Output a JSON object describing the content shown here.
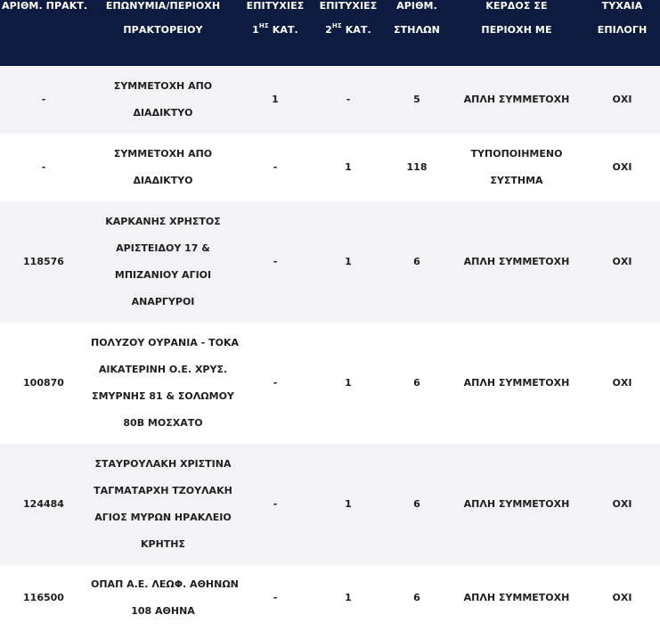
{
  "header": {
    "col1": [
      "ΑΡΙΘΜ. ΠΡΑΚΤ."
    ],
    "col2": [
      "ΕΠΩΝΥΜΙΑ/ΠΕΡΙΟΧΗ",
      "ΠΡΑΚΤΟΡΕΙΟΥ"
    ],
    "col3": {
      "line1": "ΕΠΙΤΥΧΙΕΣ",
      "num": "1",
      "sup": "ΗΣ",
      "rest": " ΚΑΤ."
    },
    "col4": {
      "line1": "ΕΠΙΤΥΧΙΕΣ",
      "num": "2",
      "sup": "ΗΣ",
      "rest": " ΚΑΤ."
    },
    "col5": [
      "ΑΡΙΘΜ.",
      "ΣΤΗΛΩΝ"
    ],
    "col6": [
      "ΚΕΡΔΟΣ ΣΕ",
      "ΠΕΡΙΟΧΗ ΜΕ"
    ],
    "col7": [
      "ΤΥΧΑΙΑ",
      "ΕΠΙΛΟΓΗ"
    ]
  },
  "rows": [
    {
      "code": "-",
      "name": [
        "ΣΥΜΜΕΤΟΧΗ ΑΠΟ",
        "ΔΙΑΔΙΚΤΥΟ"
      ],
      "first": "1",
      "second": "-",
      "columns": "5",
      "gain": [
        "ΑΠΛΗ ΣΥΜΜΕΤΟΧΗ"
      ],
      "random": "ΟΧΙ"
    },
    {
      "code": "-",
      "name": [
        "ΣΥΜΜΕΤΟΧΗ ΑΠΟ",
        "ΔΙΑΔΙΚΤΥΟ"
      ],
      "first": "-",
      "second": "1",
      "columns": "118",
      "gain": [
        "ΤΥΠΟΠΟΙΗΜΕΝΟ",
        "ΣΥΣΤΗΜΑ"
      ],
      "random": "ΟΧΙ"
    },
    {
      "code": "118576",
      "name": [
        "ΚΑΡΚΑΝΗΣ ΧΡΗΣΤΟΣ",
        "ΑΡΙΣΤΕΙΔΟΥ 17 &",
        "ΜΠΙΖΑΝΙΟΥ ΑΓΙΟΙ",
        "ΑΝΑΡΓΥΡΟΙ"
      ],
      "first": "-",
      "second": "1",
      "columns": "6",
      "gain": [
        "ΑΠΛΗ ΣΥΜΜΕΤΟΧΗ"
      ],
      "random": "ΟΧΙ"
    },
    {
      "code": "100870",
      "name": [
        "ΠΟΛΥΖΟΥ ΟΥΡΑΝΙΑ - ΤΟΚΑ",
        "ΑΙΚΑΤΕΡΙΝΗ Ο.Ε. ΧΡΥΣ.",
        "ΣΜΥΡΝΗΣ 81 & ΣΟΛΩΜΟΥ",
        "80Β ΜΟΣΧΑΤΟ"
      ],
      "first": "-",
      "second": "1",
      "columns": "6",
      "gain": [
        "ΑΠΛΗ ΣΥΜΜΕΤΟΧΗ"
      ],
      "random": "ΟΧΙ"
    },
    {
      "code": "124484",
      "name": [
        "ΣΤΑΥΡΟΥΛΑΚΗ ΧΡΙΣΤΙΝΑ",
        "ΤΑΓΜΑΤΑΡΧΗ ΤΖΟΥΛΑΚΗ",
        "ΑΓΙΟΣ ΜΥΡΩΝ ΗΡΑΚΛΕΙΟ",
        "ΚΡΗΤΗΣ"
      ],
      "first": "-",
      "second": "1",
      "columns": "6",
      "gain": [
        "ΑΠΛΗ ΣΥΜΜΕΤΟΧΗ"
      ],
      "random": "ΟΧΙ"
    },
    {
      "code": "116500",
      "name": [
        "ΟΠΑΠ Α.Ε. ΛΕΩΦ. ΑΘΗΝΩΝ",
        "108 ΑΘΗΝΑ"
      ],
      "first": "-",
      "second": "1",
      "columns": "6",
      "gain": [
        "ΑΠΛΗ ΣΥΜΜΕΤΟΧΗ"
      ],
      "random": "ΟΧΙ"
    }
  ]
}
